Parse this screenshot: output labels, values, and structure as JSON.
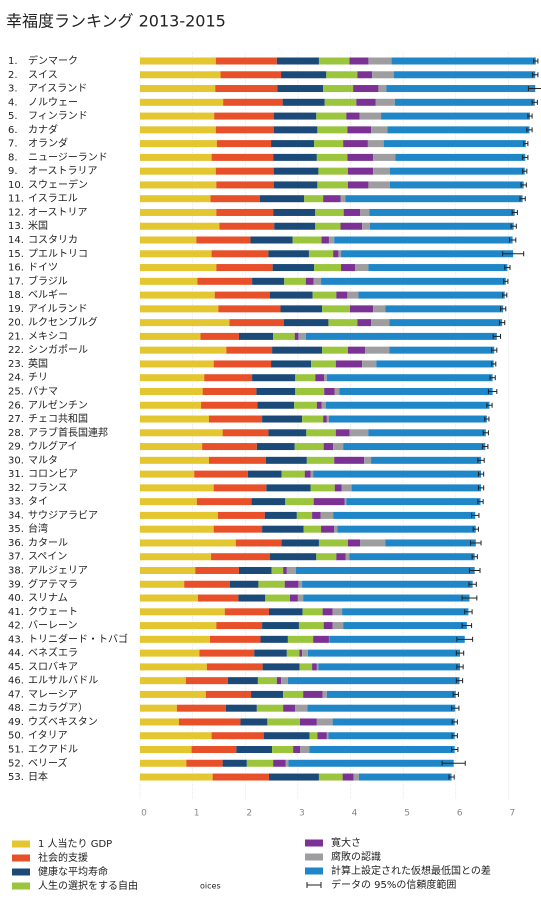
{
  "chart_data": {
    "type": "stacked-bar-horizontal",
    "title": "幸福度ランキング 2013-2015",
    "ranks": [
      "1.",
      "2.",
      "3.",
      "4.",
      "5.",
      "6.",
      "7.",
      "8.",
      "9.",
      "10.",
      "11.",
      "12.",
      "13.",
      "14.",
      "15.",
      "16.",
      "17.",
      "18.",
      "19.",
      "20.",
      "21.",
      "22.",
      "23.",
      "24.",
      "25.",
      "26.",
      "27.",
      "28.",
      "29.",
      "30.",
      "31.",
      "32.",
      "33.",
      "34.",
      "35.",
      "36.",
      "37.",
      "38.",
      "39.",
      "40.",
      "41.",
      "42.",
      "43.",
      "44.",
      "45.",
      "46.",
      "47.",
      "48.",
      "49.",
      "50.",
      "51.",
      "52.",
      "53."
    ],
    "categories": [
      "デンマーク",
      "スイス",
      "アイスランド",
      "ノルウェー",
      "フィンランド",
      "カナダ",
      "オランダ",
      "ニュージーランド",
      "オーストラリア",
      "スウェーデン",
      "イスラエル",
      "オーストリア",
      "米国",
      "コスタリカ",
      "プエルトリコ",
      "ドイツ",
      "ブラジル",
      "ベルギー",
      "アイルランド",
      "ルクセンブルグ",
      "メキシコ",
      "シンガポール",
      "英国",
      "チリ",
      "パナマ",
      "アルゼンチン",
      "チェコ共和国",
      "アラブ首長国連邦",
      "ウルグアイ",
      "マルタ",
      "コロンビア",
      "フランス",
      "タイ",
      "サウジアラビア",
      "台湾",
      "カタール",
      "スペイン",
      "アルジェリア",
      "グアテマラ",
      "スリナム",
      "クウェート",
      "バーレーン",
      "トリニダード・トバゴ",
      "ベネズエラ",
      "スロバキア",
      "エルサルバドル",
      "マレーシア",
      "ニカラグア）",
      "ウズベキスタン",
      "イタリア",
      "エクアドル",
      "ベリーズ",
      "日本"
    ],
    "series": [
      {
        "name": "1 人当たり GDP",
        "color": "#e3c630",
        "values": [
          1.44,
          1.53,
          1.43,
          1.58,
          1.41,
          1.44,
          1.46,
          1.36,
          1.44,
          1.45,
          1.34,
          1.45,
          1.51,
          1.07,
          1.36,
          1.45,
          1.09,
          1.42,
          1.49,
          1.7,
          1.15,
          1.64,
          1.4,
          1.22,
          1.19,
          1.16,
          1.31,
          1.57,
          1.18,
          1.31,
          1.03,
          1.4,
          1.08,
          1.48,
          1.4,
          1.82,
          1.35,
          1.05,
          0.84,
          1.1,
          1.61,
          1.45,
          1.33,
          1.13,
          1.27,
          0.87,
          1.25,
          0.7,
          0.74,
          1.36,
          0.98,
          0.88,
          1.38
        ]
      },
      {
        "name": "社会的支援",
        "color": "#e8502a",
        "values": [
          1.16,
          1.15,
          1.18,
          1.13,
          1.13,
          1.1,
          1.03,
          1.17,
          1.1,
          1.09,
          0.94,
          1.08,
          1.04,
          1.03,
          1.08,
          1.07,
          1.04,
          1.05,
          1.18,
          1.03,
          0.73,
          0.87,
          1.09,
          0.91,
          1.02,
          1.07,
          1.01,
          0.87,
          1.04,
          1.08,
          1.02,
          1.0,
          1.04,
          0.89,
          0.92,
          0.87,
          1.12,
          0.83,
          0.87,
          0.77,
          0.84,
          0.87,
          0.96,
          1.04,
          1.06,
          0.8,
          0.86,
          0.93,
          1.17,
          0.99,
          0.85,
          0.69,
          1.07
        ]
      },
      {
        "name": "健康な平均寿命",
        "color": "#1b4a78",
        "values": [
          0.8,
          0.86,
          0.87,
          0.8,
          0.81,
          0.83,
          0.82,
          0.83,
          0.85,
          0.83,
          0.84,
          0.8,
          0.78,
          0.8,
          0.77,
          0.79,
          0.61,
          0.81,
          0.79,
          0.85,
          0.65,
          0.95,
          0.76,
          0.82,
          0.74,
          0.7,
          0.76,
          0.72,
          0.72,
          0.78,
          0.64,
          0.84,
          0.64,
          0.61,
          0.79,
          0.71,
          0.88,
          0.62,
          0.54,
          0.51,
          0.64,
          0.7,
          0.52,
          0.62,
          0.7,
          0.57,
          0.61,
          0.59,
          0.51,
          0.87,
          0.68,
          0.46,
          0.95
        ]
      },
      {
        "name": "人生の選択をする自由",
        "color": "#9bc53d",
        "values": [
          0.58,
          0.59,
          0.57,
          0.6,
          0.57,
          0.57,
          0.55,
          0.58,
          0.56,
          0.58,
          0.36,
          0.54,
          0.48,
          0.55,
          0.46,
          0.51,
          0.41,
          0.45,
          0.53,
          0.55,
          0.41,
          0.49,
          0.47,
          0.38,
          0.55,
          0.43,
          0.4,
          0.56,
          0.55,
          0.52,
          0.44,
          0.46,
          0.54,
          0.29,
          0.33,
          0.55,
          0.38,
          0.22,
          0.5,
          0.47,
          0.38,
          0.47,
          0.48,
          0.24,
          0.24,
          0.36,
          0.38,
          0.5,
          0.62,
          0.15,
          0.4,
          0.5,
          0.45
        ]
      },
      {
        "name": "寛大さ",
        "color": "#7b3294",
        "values": [
          0.36,
          0.28,
          0.48,
          0.37,
          0.25,
          0.45,
          0.47,
          0.49,
          0.48,
          0.39,
          0.33,
          0.31,
          0.41,
          0.14,
          0.1,
          0.27,
          0.15,
          0.21,
          0.44,
          0.26,
          0.07,
          0.33,
          0.5,
          0.17,
          0.2,
          0.09,
          0.07,
          0.26,
          0.18,
          0.57,
          0.11,
          0.13,
          0.59,
          0.16,
          0.25,
          0.23,
          0.18,
          0.07,
          0.26,
          0.15,
          0.19,
          0.17,
          0.3,
          0.05,
          0.09,
          0.08,
          0.37,
          0.23,
          0.32,
          0.18,
          0.13,
          0.24,
          0.21
        ]
      },
      {
        "name": "腐敗の認識",
        "color": "#9e9ea0",
        "values": [
          0.44,
          0.41,
          0.15,
          0.36,
          0.41,
          0.31,
          0.3,
          0.42,
          0.32,
          0.41,
          0.09,
          0.18,
          0.15,
          0.1,
          0.05,
          0.25,
          0.14,
          0.21,
          0.23,
          0.35,
          0.14,
          0.46,
          0.27,
          0.05,
          0.09,
          0.08,
          0.04,
          0.36,
          0.19,
          0.13,
          0.05,
          0.19,
          0.03,
          0.24,
          0.06,
          0.48,
          0.07,
          0.17,
          0.07,
          0.1,
          0.18,
          0.2,
          0.01,
          0.11,
          0.03,
          0.13,
          0.08,
          0.23,
          0.3,
          0.03,
          0.18,
          0.05,
          0.1
        ]
      },
      {
        "name": "計算上設定された仮想最低国との差",
        "color": "#1f86c8",
        "values": [
          2.74,
          2.69,
          2.83,
          2.66,
          2.83,
          2.7,
          2.7,
          2.47,
          2.56,
          2.54,
          3.37,
          2.76,
          2.73,
          3.39,
          3.27,
          2.64,
          3.51,
          2.78,
          2.24,
          2.14,
          3.63,
          1.99,
          2.23,
          3.15,
          2.91,
          3.11,
          3.0,
          2.23,
          2.7,
          2.09,
          3.19,
          2.46,
          2.55,
          2.7,
          2.63,
          1.72,
          2.38,
          3.4,
          3.24,
          3.16,
          2.4,
          2.35,
          2.57,
          2.89,
          2.69,
          3.26,
          2.45,
          2.81,
          2.32,
          2.4,
          2.76,
          3.14,
          1.76
        ]
      }
    ],
    "error": {
      "name": "データの 95%の信頼度範囲",
      "color": "#222222",
      "values": [
        0.04,
        0.05,
        0.13,
        0.05,
        0.04,
        0.05,
        0.04,
        0.05,
        0.04,
        0.05,
        0.05,
        0.05,
        0.05,
        0.06,
        0.2,
        0.05,
        0.04,
        0.04,
        0.05,
        0.05,
        0.07,
        0.05,
        0.04,
        0.05,
        0.08,
        0.05,
        0.04,
        0.05,
        0.05,
        0.06,
        0.05,
        0.05,
        0.05,
        0.07,
        0.05,
        0.1,
        0.05,
        0.1,
        0.07,
        0.14,
        0.07,
        0.09,
        0.15,
        0.07,
        0.06,
        0.06,
        0.05,
        0.07,
        0.05,
        0.05,
        0.06,
        0.22,
        0.05
      ]
    },
    "xlim": [
      0,
      7.6
    ],
    "xticks": [
      0,
      1,
      2,
      3,
      4,
      5,
      6,
      7
    ],
    "grid": true,
    "footer_fragment": "oices"
  }
}
